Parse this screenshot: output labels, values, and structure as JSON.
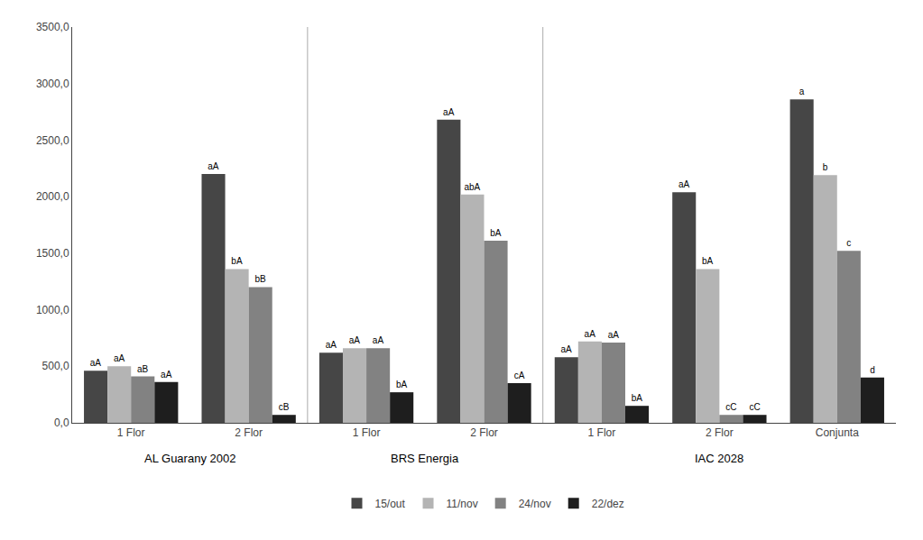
{
  "chart_data": {
    "type": "bar",
    "categories": [
      "1 Flor",
      "2 Flor",
      "1 Flor",
      "2 Flor",
      "1 Flor",
      "2 Flor",
      "Conjunta"
    ],
    "series": [
      {
        "name": "15/out",
        "color": "#464646",
        "values": [
          460,
          2200,
          620,
          2680,
          580,
          2040,
          2860
        ],
        "annotations": [
          "aA",
          "aA",
          "aA",
          "aA",
          "aA",
          "aA",
          "a"
        ]
      },
      {
        "name": "11/nov",
        "color": "#b4b4b4",
        "values": [
          500,
          1360,
          660,
          2020,
          720,
          1360,
          2190
        ],
        "annotations": [
          "aA",
          "bA",
          "aA",
          "abA",
          "aA",
          "bA",
          "b"
        ]
      },
      {
        "name": "24/nov",
        "color": "#828282",
        "values": [
          410,
          1200,
          660,
          1610,
          710,
          70,
          1520
        ],
        "annotations": [
          "aB",
          "bB",
          "aA",
          "bA",
          "aA",
          "cC",
          "c"
        ]
      },
      {
        "name": "22/dez",
        "color": "#1e1e1e",
        "values": [
          360,
          70,
          270,
          350,
          150,
          70,
          400
        ],
        "annotations": [
          "aA",
          "cB",
          "bA",
          "cA",
          "bA",
          "cC",
          "d"
        ]
      }
    ],
    "sections": [
      {
        "label": "AL Guarany 2002",
        "indices": [
          0,
          1
        ]
      },
      {
        "label": "BRS Energia",
        "indices": [
          2,
          3
        ]
      },
      {
        "label": "IAC 2028",
        "indices": [
          4,
          5,
          6
        ]
      }
    ],
    "ylim": [
      0,
      3500
    ],
    "yticks": [
      {
        "value": 0,
        "label": "0,0"
      },
      {
        "value": 500,
        "label": "500,0"
      },
      {
        "value": 1000,
        "label": "1000,0"
      },
      {
        "value": 1500,
        "label": "1500,0"
      },
      {
        "value": 2000,
        "label": "2000,0"
      },
      {
        "value": 2500,
        "label": "2500,0"
      },
      {
        "value": 3000,
        "label": "3000,0"
      },
      {
        "value": 3500,
        "label": "3500,0"
      }
    ],
    "grid": false,
    "legend": "bottom"
  }
}
